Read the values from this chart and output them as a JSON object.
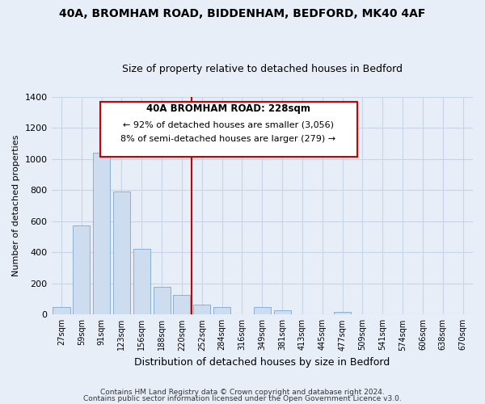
{
  "title": "40A, BROMHAM ROAD, BIDDENHAM, BEDFORD, MK40 4AF",
  "subtitle": "Size of property relative to detached houses in Bedford",
  "xlabel": "Distribution of detached houses by size in Bedford",
  "ylabel": "Number of detached properties",
  "categories": [
    "27sqm",
    "59sqm",
    "91sqm",
    "123sqm",
    "156sqm",
    "188sqm",
    "220sqm",
    "252sqm",
    "284sqm",
    "316sqm",
    "349sqm",
    "381sqm",
    "413sqm",
    "445sqm",
    "477sqm",
    "509sqm",
    "541sqm",
    "574sqm",
    "606sqm",
    "638sqm",
    "670sqm"
  ],
  "values": [
    50,
    575,
    1040,
    790,
    420,
    180,
    125,
    65,
    50,
    0,
    50,
    25,
    0,
    0,
    15,
    0,
    0,
    0,
    0,
    0,
    0
  ],
  "bar_color": "#cddcef",
  "bar_edge_color": "#8ab0d4",
  "vline_x": 6.5,
  "vline_color": "#cc0000",
  "annotation_title": "40A BROMHAM ROAD: 228sqm",
  "annotation_line1": "← 92% of detached houses are smaller (3,056)",
  "annotation_line2": "8% of semi-detached houses are larger (279) →",
  "annotation_box_color": "#ffffff",
  "annotation_box_edge": "#cc0000",
  "ylim": [
    0,
    1400
  ],
  "yticks": [
    0,
    200,
    400,
    600,
    800,
    1000,
    1200,
    1400
  ],
  "footer1": "Contains HM Land Registry data © Crown copyright and database right 2024.",
  "footer2": "Contains public sector information licensed under the Open Government Licence v3.0.",
  "bg_color": "#e8eef8",
  "plot_bg_color": "#e8eef8",
  "grid_color": "#c8d4e8"
}
